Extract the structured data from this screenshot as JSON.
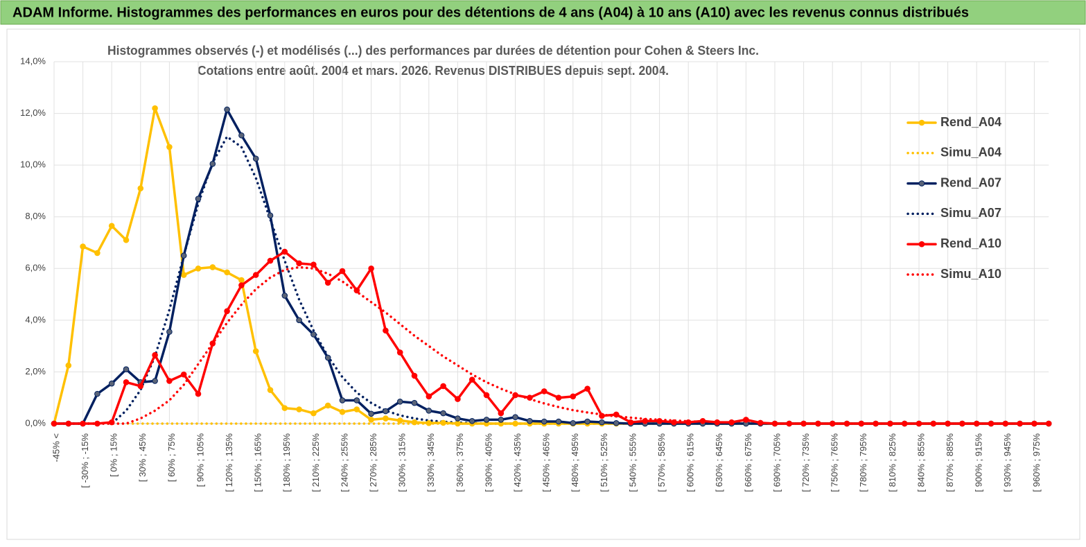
{
  "chart_data": {
    "type": "line",
    "header": "ADAM Informe. Histogrammes des performances en euros pour des détentions de 4 ans (A04) à 10 ans (A10) avec les revenus connus distribués",
    "title": [
      "Histogrammes observés (-) et modélisés (...) des performances par durées de détention pour Cohen & Steers Inc.",
      "Cotations entre août. 2004 et mars. 2026. Revenus DISTRIBUES depuis sept. 2004."
    ],
    "categories": [
      "-45% <",
      null,
      "[ -30% ; -15%",
      null,
      "[ 0% ; 15%",
      null,
      "[ 30% ; 45%",
      null,
      "[ 60% ; 75%",
      null,
      "[ 90% ; 105%",
      null,
      "[ 120% ; 135%",
      null,
      "[ 150% ; 165%",
      null,
      "[ 180% ; 195%",
      null,
      "[ 210% ; 225%",
      null,
      "[ 240% ; 255%",
      null,
      "[ 270% ; 285%",
      null,
      "[ 300% ; 315%",
      null,
      "[ 330% ; 345%",
      null,
      "[ 360% ; 375%",
      null,
      "[ 390% ; 405%",
      null,
      "[ 420% ; 435%",
      null,
      "[ 450% ; 465%",
      null,
      "[ 480% ; 495%",
      null,
      "[ 510% ; 525%",
      null,
      "[ 540% ; 555%",
      null,
      "[ 570% ; 585%",
      null,
      "[ 600% ; 615%",
      null,
      "[ 630% ; 645%",
      null,
      "[ 660% ; 675%",
      null,
      "[ 690% ; 705%",
      null,
      "[ 720% ; 735%",
      null,
      "[ 750% ; 765%",
      null,
      "[ 780% ; 795%",
      null,
      "[ 810% ; 825%",
      null,
      "[ 840% ; 855%",
      null,
      "[ 870% ; 885%",
      null,
      "[ 900% ; 915%",
      null,
      "[ 930% ; 945%",
      null,
      "[ 960% ; 975%",
      null
    ],
    "series": [
      {
        "name": "Rend_A04",
        "color": "#ffc000",
        "style": "solid",
        "values": [
          0,
          2.25,
          6.85,
          6.6,
          7.65,
          7.1,
          9.1,
          12.2,
          10.7,
          5.75,
          6.0,
          6.05,
          5.85,
          5.55,
          2.8,
          1.3,
          0.6,
          0.55,
          0.4,
          0.7,
          0.45,
          0.55,
          0.15,
          0.2,
          0.12,
          0.05,
          0.02,
          0.03,
          0,
          0,
          0,
          0,
          0,
          0,
          0,
          0,
          0,
          0,
          0,
          0,
          0,
          0,
          0,
          0,
          0,
          0,
          0,
          0,
          0,
          0,
          0,
          0,
          0,
          0,
          0,
          0,
          0,
          0,
          0,
          0,
          0,
          0,
          0,
          0,
          0,
          0,
          0,
          0,
          0,
          0
        ]
      },
      {
        "name": "Simu_A04",
        "color": "#ffc000",
        "style": "dotted",
        "values": [
          0,
          0,
          0,
          0,
          0,
          0,
          0,
          0,
          0,
          0,
          0,
          0,
          0,
          0,
          0,
          0,
          0,
          0,
          0,
          0,
          0,
          0,
          0,
          0,
          0,
          0,
          0,
          0,
          0,
          0,
          0,
          0,
          0,
          0,
          0,
          0,
          0,
          0,
          0,
          0,
          0,
          0,
          0,
          0,
          0,
          0,
          0,
          0,
          0,
          0,
          0,
          0,
          0,
          0,
          0,
          0,
          0,
          0,
          0,
          0,
          0,
          0,
          0,
          0,
          0,
          0,
          0,
          0,
          0,
          0
        ]
      },
      {
        "name": "Rend_A07",
        "color": "#002060",
        "style": "solid",
        "values": [
          0,
          0,
          0,
          1.15,
          1.55,
          2.1,
          1.6,
          1.65,
          3.55,
          6.5,
          8.7,
          10.05,
          12.15,
          11.15,
          10.25,
          8.05,
          4.95,
          4.0,
          3.45,
          2.55,
          0.9,
          0.9,
          0.38,
          0.48,
          0.85,
          0.8,
          0.5,
          0.4,
          0.2,
          0.1,
          0.15,
          0.15,
          0.25,
          0.1,
          0.08,
          0.08,
          0.02,
          0.08,
          0.05,
          0.02,
          0,
          0,
          0,
          0,
          0,
          0,
          0,
          0,
          0,
          0,
          0,
          0,
          0,
          0,
          0,
          0,
          0,
          0,
          0,
          0,
          0,
          0,
          0,
          0,
          0,
          0,
          0,
          0,
          0,
          0
        ]
      },
      {
        "name": "Simu_A07",
        "color": "#002060",
        "style": "dotted",
        "values": [
          0,
          0,
          0,
          0,
          0,
          0.5,
          1.3,
          2.6,
          4.4,
          6.5,
          8.5,
          10.1,
          11.1,
          10.7,
          9.5,
          7.9,
          6.3,
          4.8,
          3.6,
          2.6,
          1.8,
          1.2,
          0.8,
          0.5,
          0.32,
          0.2,
          0.12,
          0.07,
          0.04,
          0.02,
          0,
          0,
          0,
          0,
          0,
          0,
          0,
          0,
          0,
          0,
          0,
          0,
          0,
          0,
          0,
          0,
          0,
          0,
          0,
          0,
          0,
          0,
          0,
          0,
          0,
          0,
          0,
          0,
          0,
          0,
          0,
          0,
          0,
          0,
          0,
          0,
          0,
          0,
          0,
          0
        ]
      },
      {
        "name": "Rend_A10",
        "color": "#ff0000",
        "style": "solid",
        "values": [
          0,
          0,
          0,
          0,
          0.05,
          1.6,
          1.45,
          2.65,
          1.65,
          1.9,
          1.15,
          3.1,
          4.35,
          5.35,
          5.75,
          6.3,
          6.65,
          6.2,
          6.15,
          5.45,
          5.9,
          5.15,
          6.0,
          3.6,
          2.75,
          1.85,
          1.05,
          1.45,
          0.95,
          1.7,
          1.1,
          0.4,
          1.1,
          1.0,
          1.25,
          1.0,
          1.05,
          1.35,
          0.3,
          0.35,
          0.05,
          0.1,
          0.1,
          0.05,
          0.05,
          0.1,
          0.05,
          0.05,
          0.15,
          0.03,
          0,
          0,
          0,
          0,
          0,
          0,
          0,
          0,
          0,
          0,
          0,
          0,
          0,
          0,
          0,
          0,
          0,
          0,
          0,
          0
        ]
      },
      {
        "name": "Simu_A10",
        "color": "#ff0000",
        "style": "dotted",
        "values": [
          0,
          0,
          0,
          0,
          0,
          0,
          0.2,
          0.5,
          0.9,
          1.5,
          2.3,
          3.1,
          3.9,
          4.6,
          5.2,
          5.65,
          5.95,
          6.05,
          6.0,
          5.8,
          5.5,
          5.1,
          4.7,
          4.3,
          3.85,
          3.4,
          3.0,
          2.6,
          2.25,
          1.9,
          1.6,
          1.35,
          1.13,
          0.95,
          0.78,
          0.64,
          0.52,
          0.43,
          0.35,
          0.28,
          0.23,
          0.18,
          0.15,
          0.12,
          0.09,
          0.07,
          0.05,
          0.04,
          0.03,
          0.02,
          0,
          0,
          0,
          0,
          0,
          0,
          0,
          0,
          0,
          0,
          0,
          0,
          0,
          0,
          0,
          0,
          0,
          0,
          0,
          0
        ]
      }
    ],
    "ylim": [
      0,
      14
    ],
    "yticks": [
      {
        "value": 0,
        "label": "0,0%"
      },
      {
        "value": 2,
        "label": "2,0%"
      },
      {
        "value": 4,
        "label": "4,0%"
      },
      {
        "value": 6,
        "label": "6,0%"
      },
      {
        "value": 8,
        "label": "8,0%"
      },
      {
        "value": 10,
        "label": "10,0%"
      },
      {
        "value": 12,
        "label": "12,0%"
      },
      {
        "value": 14,
        "label": "14,0%"
      }
    ],
    "grid": true,
    "legend": "right"
  }
}
